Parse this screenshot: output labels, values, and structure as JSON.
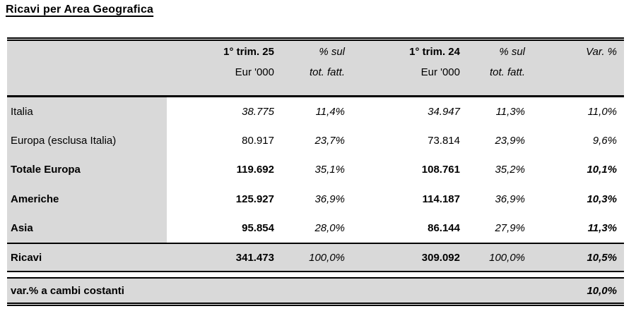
{
  "title": "Ricavi per Area Geografica",
  "table": {
    "header": {
      "q25_line1": "1° trim. 25",
      "q25_line2": "Eur '000",
      "pct25_line1": "% sul",
      "pct25_line2": "tot. fatt.",
      "q24_line1": "1° trim. 24",
      "q24_line2": "Eur '000",
      "pct24_line1": "% sul",
      "pct24_line2": "tot. fatt.",
      "var_line1": "Var. %"
    },
    "rows": [
      {
        "label": "Italia",
        "q25": "38.775",
        "pct25": "11,4%",
        "q24": "34.947",
        "pct24": "11,3%",
        "var": "11,0%"
      },
      {
        "label": "Europa (esclusa Italia)",
        "q25": "80.917",
        "pct25": "23,7%",
        "q24": "73.814",
        "pct24": "23,9%",
        "var": "9,6%"
      },
      {
        "label": "Totale Europa",
        "q25": "119.692",
        "pct25": "35,1%",
        "q24": "108.761",
        "pct24": "35,2%",
        "var": "10,1%"
      },
      {
        "label": "Americhe",
        "q25": "125.927",
        "pct25": "36,9%",
        "q24": "114.187",
        "pct24": "36,9%",
        "var": "10,3%"
      },
      {
        "label": "Asia",
        "q25": "95.854",
        "pct25": "28,0%",
        "q24": "86.144",
        "pct24": "27,9%",
        "var": "11,3%"
      }
    ],
    "total_row": {
      "label": "Ricavi",
      "q25": "341.473",
      "pct25": "100,0%",
      "q24": "309.092",
      "pct24": "100,0%",
      "var": "10,5%"
    },
    "footer_row": {
      "label": "var.% a cambi costanti",
      "var": "10,0%"
    }
  },
  "colors": {
    "row_shade": "#d9d9d9",
    "border": "#000000",
    "background": "#ffffff"
  }
}
